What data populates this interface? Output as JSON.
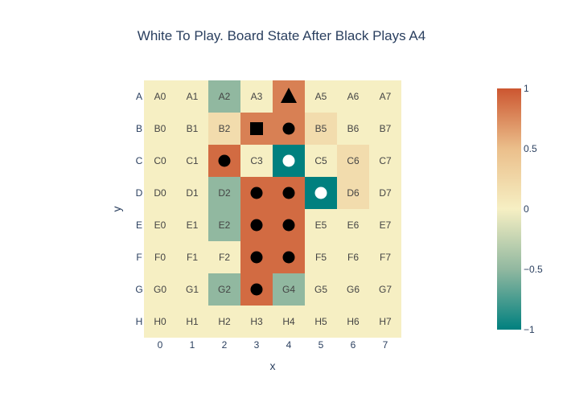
{
  "chart_data": {
    "type": "heatmap",
    "title": "White To Play. Board State After Black Plays A4",
    "xlabel": "x",
    "ylabel": "y",
    "x": [
      "0",
      "1",
      "2",
      "3",
      "4",
      "5",
      "6",
      "7"
    ],
    "y": [
      "A",
      "B",
      "C",
      "D",
      "E",
      "F",
      "G",
      "H"
    ],
    "z": [
      [
        0,
        0,
        -0.5,
        0,
        0.8,
        0,
        0,
        0
      ],
      [
        0,
        0,
        0.2,
        0.8,
        0.8,
        0.2,
        0,
        0
      ],
      [
        0,
        0,
        0.9,
        0,
        -1,
        0,
        0.2,
        0
      ],
      [
        0,
        0,
        -0.5,
        0.9,
        0.9,
        -1,
        0.2,
        0
      ],
      [
        0,
        0,
        -0.5,
        0.9,
        0.9,
        0,
        0,
        0
      ],
      [
        0,
        0,
        0,
        0.9,
        0.9,
        0,
        0,
        0
      ],
      [
        0,
        0,
        -0.5,
        0.9,
        -0.5,
        0,
        0,
        0
      ],
      [
        0,
        0,
        0,
        0,
        0,
        0,
        0,
        0
      ]
    ],
    "cell_labels": [
      [
        "A0",
        "A1",
        "A2",
        "A3",
        "",
        "A5",
        "A6",
        "A7"
      ],
      [
        "B0",
        "B1",
        "B2",
        "",
        "",
        "B5",
        "B6",
        "B7"
      ],
      [
        "C0",
        "C1",
        "",
        "C3",
        "",
        "C5",
        "C6",
        "C7"
      ],
      [
        "D0",
        "D1",
        "D2",
        "",
        "",
        "",
        "D6",
        "D7"
      ],
      [
        "E0",
        "E1",
        "E2",
        "",
        "",
        "E5",
        "E6",
        "E7"
      ],
      [
        "F0",
        "F1",
        "F2",
        "",
        "",
        "F5",
        "F6",
        "F7"
      ],
      [
        "G0",
        "G1",
        "G2",
        "",
        "G4",
        "G5",
        "G6",
        "G7"
      ],
      [
        "H0",
        "H1",
        "H2",
        "H3",
        "H4",
        "H5",
        "H6",
        "H7"
      ]
    ],
    "pieces": [
      {
        "row": "A",
        "col": "4",
        "shape": "triangle",
        "color": "black"
      },
      {
        "row": "B",
        "col": "3",
        "shape": "square",
        "color": "black"
      },
      {
        "row": "B",
        "col": "4",
        "shape": "circle",
        "color": "black"
      },
      {
        "row": "C",
        "col": "2",
        "shape": "circle",
        "color": "black"
      },
      {
        "row": "C",
        "col": "4",
        "shape": "circle",
        "color": "white"
      },
      {
        "row": "D",
        "col": "3",
        "shape": "circle",
        "color": "black"
      },
      {
        "row": "D",
        "col": "4",
        "shape": "circle",
        "color": "black"
      },
      {
        "row": "D",
        "col": "5",
        "shape": "circle",
        "color": "white"
      },
      {
        "row": "E",
        "col": "3",
        "shape": "circle",
        "color": "black"
      },
      {
        "row": "E",
        "col": "4",
        "shape": "circle",
        "color": "black"
      },
      {
        "row": "F",
        "col": "3",
        "shape": "circle",
        "color": "black"
      },
      {
        "row": "F",
        "col": "4",
        "shape": "circle",
        "color": "black"
      },
      {
        "row": "G",
        "col": "3",
        "shape": "circle",
        "color": "black"
      }
    ],
    "colorscale": [
      [
        0,
        "#00807f"
      ],
      [
        0.25,
        "#91b8a0"
      ],
      [
        0.5,
        "#f6efc3"
      ],
      [
        0.75,
        "#ebbf8b"
      ],
      [
        1,
        "#cc5630"
      ]
    ],
    "zrange": [
      -1,
      1
    ],
    "colorbar_ticks": [
      "1",
      "0.5",
      "0",
      "−0.5",
      "−1"
    ],
    "colorbar_tick_values": [
      1,
      0.5,
      0,
      -0.5,
      -1
    ]
  }
}
